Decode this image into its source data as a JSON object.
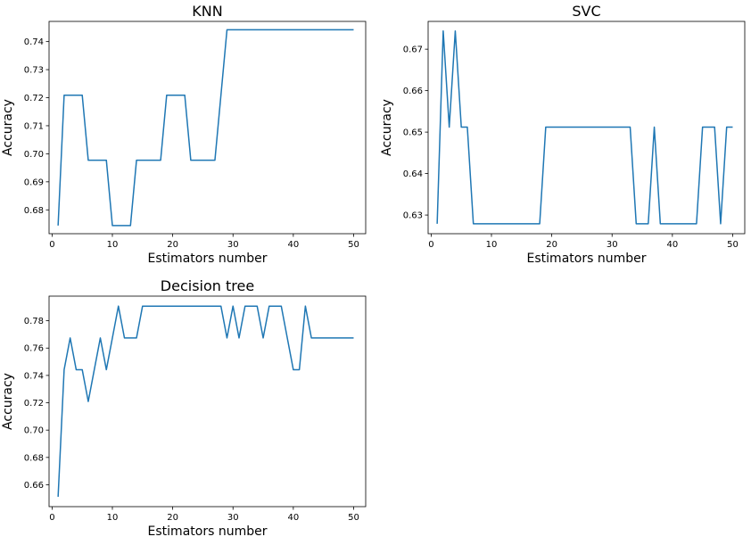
{
  "chart_data": [
    {
      "type": "line",
      "title": "KNN",
      "xlabel": "Estimators number",
      "ylabel": "Accuracy",
      "xlim": [
        -0.5,
        52
      ],
      "ylim": [
        0.6715,
        0.7472
      ],
      "xticks": [
        0,
        10,
        20,
        30,
        40,
        50
      ],
      "yticks": [
        0.68,
        0.69,
        0.7,
        0.71,
        0.72,
        0.73,
        0.74
      ],
      "ytick_labels": [
        "0.68",
        "0.69",
        "0.70",
        "0.71",
        "0.72",
        "0.73",
        "0.74"
      ],
      "color": "#1f77b4",
      "x": [
        1,
        2,
        3,
        4,
        5,
        6,
        7,
        8,
        9,
        10,
        11,
        12,
        13,
        14,
        15,
        16,
        17,
        18,
        19,
        20,
        21,
        22,
        23,
        24,
        25,
        26,
        27,
        28,
        29,
        30,
        31,
        32,
        33,
        34,
        35,
        36,
        37,
        38,
        39,
        40,
        41,
        42,
        43,
        44,
        45,
        46,
        47,
        48,
        49,
        50
      ],
      "y": [
        0.6744,
        0.7209,
        0.7209,
        0.7209,
        0.7209,
        0.6977,
        0.6977,
        0.6977,
        0.6977,
        0.6744,
        0.6744,
        0.6744,
        0.6744,
        0.6977,
        0.6977,
        0.6977,
        0.6977,
        0.6977,
        0.7209,
        0.7209,
        0.7209,
        0.7209,
        0.6977,
        0.6977,
        0.6977,
        0.6977,
        0.6977,
        0.7209,
        0.7442,
        0.7442,
        0.7442,
        0.7442,
        0.7442,
        0.7442,
        0.7442,
        0.7442,
        0.7442,
        0.7442,
        0.7442,
        0.7442,
        0.7442,
        0.7442,
        0.7442,
        0.7442,
        0.7442,
        0.7442,
        0.7442,
        0.7442,
        0.7442,
        0.7442
      ]
    },
    {
      "type": "line",
      "title": "SVC",
      "xlabel": "Estimators number",
      "ylabel": "Accuracy",
      "xlim": [
        -0.5,
        52
      ],
      "ylim": [
        0.6255,
        0.6767
      ],
      "xticks": [
        0,
        10,
        20,
        30,
        40,
        50
      ],
      "yticks": [
        0.63,
        0.64,
        0.65,
        0.66,
        0.67
      ],
      "ytick_labels": [
        "0.63",
        "0.64",
        "0.65",
        "0.66",
        "0.67"
      ],
      "color": "#1f77b4",
      "x": [
        1,
        2,
        3,
        4,
        5,
        6,
        7,
        8,
        9,
        10,
        11,
        12,
        13,
        14,
        15,
        16,
        17,
        18,
        19,
        20,
        21,
        22,
        23,
        24,
        25,
        26,
        27,
        28,
        29,
        30,
        31,
        32,
        33,
        34,
        35,
        36,
        37,
        38,
        39,
        40,
        41,
        42,
        43,
        44,
        45,
        46,
        47,
        48,
        49,
        50
      ],
      "y": [
        0.6279,
        0.6744,
        0.6512,
        0.6744,
        0.6512,
        0.6512,
        0.6279,
        0.6279,
        0.6279,
        0.6279,
        0.6279,
        0.6279,
        0.6279,
        0.6279,
        0.6279,
        0.6279,
        0.6279,
        0.6279,
        0.6512,
        0.6512,
        0.6512,
        0.6512,
        0.6512,
        0.6512,
        0.6512,
        0.6512,
        0.6512,
        0.6512,
        0.6512,
        0.6512,
        0.6512,
        0.6512,
        0.6512,
        0.6279,
        0.6279,
        0.6279,
        0.6512,
        0.6279,
        0.6279,
        0.6279,
        0.6279,
        0.6279,
        0.6279,
        0.6279,
        0.6512,
        0.6512,
        0.6512,
        0.6279,
        0.6512,
        0.6512
      ]
    },
    {
      "type": "line",
      "title": "Decision tree",
      "xlabel": "Estimators number",
      "ylabel": "Accuracy",
      "xlim": [
        -0.5,
        52
      ],
      "ylim": [
        0.644,
        0.798
      ],
      "xticks": [
        0,
        10,
        20,
        30,
        40,
        50
      ],
      "yticks": [
        0.66,
        0.68,
        0.7,
        0.72,
        0.74,
        0.76,
        0.78
      ],
      "ytick_labels": [
        "0.66",
        "0.68",
        "0.70",
        "0.72",
        "0.74",
        "0.76",
        "0.78"
      ],
      "color": "#1f77b4",
      "x": [
        1,
        2,
        3,
        4,
        5,
        6,
        7,
        8,
        9,
        10,
        11,
        12,
        13,
        14,
        15,
        16,
        17,
        18,
        19,
        20,
        21,
        22,
        23,
        24,
        25,
        26,
        27,
        28,
        29,
        30,
        31,
        32,
        33,
        34,
        35,
        36,
        37,
        38,
        39,
        40,
        41,
        42,
        43,
        44,
        45,
        46,
        47,
        48,
        49,
        50
      ],
      "y": [
        0.6512,
        0.7442,
        0.7674,
        0.7442,
        0.7442,
        0.7209,
        0.7442,
        0.7674,
        0.7442,
        0.7674,
        0.7907,
        0.7674,
        0.7674,
        0.7674,
        0.7907,
        0.7907,
        0.7907,
        0.7907,
        0.7907,
        0.7907,
        0.7907,
        0.7907,
        0.7907,
        0.7907,
        0.7907,
        0.7907,
        0.7907,
        0.7907,
        0.7674,
        0.7907,
        0.7674,
        0.7907,
        0.7907,
        0.7907,
        0.7674,
        0.7907,
        0.7907,
        0.7907,
        0.7674,
        0.7442,
        0.7442,
        0.7907,
        0.7674,
        0.7674,
        0.7674,
        0.7674,
        0.7674,
        0.7674,
        0.7674,
        0.7674
      ]
    }
  ]
}
